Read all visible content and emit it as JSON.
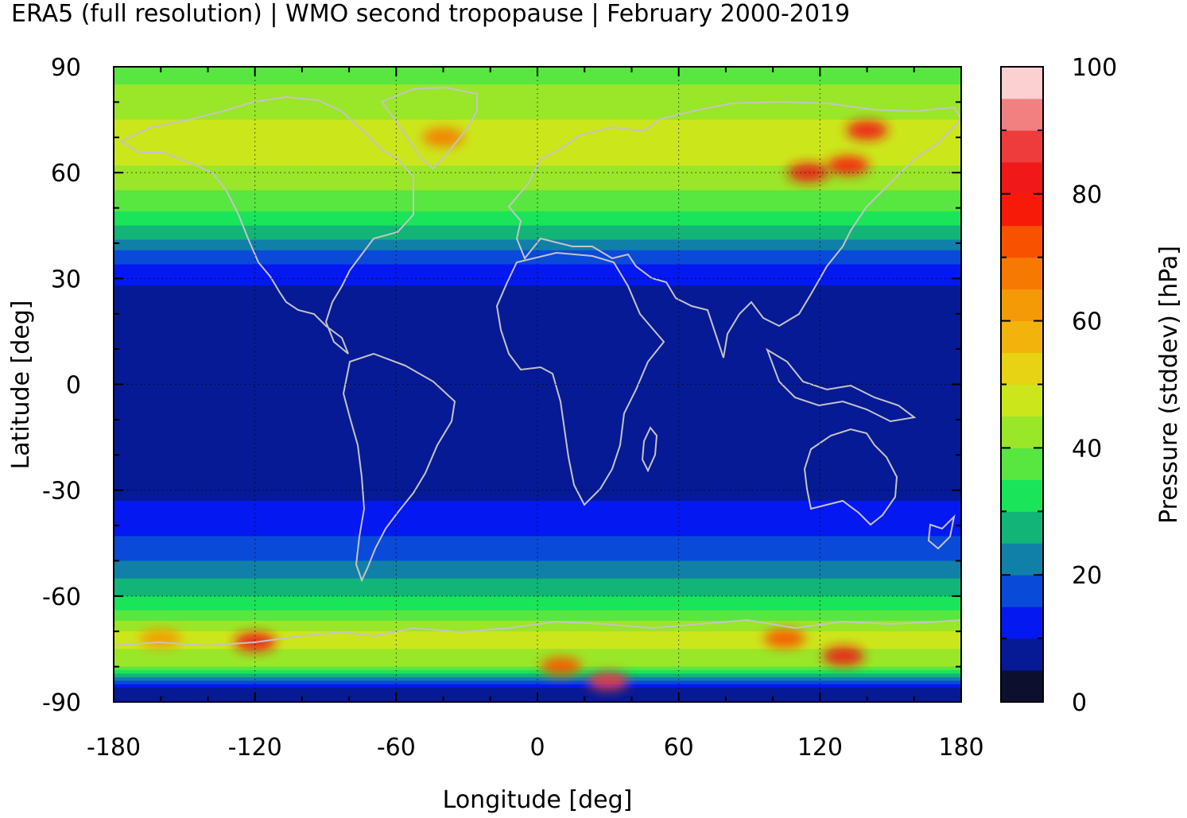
{
  "chart_data": {
    "type": "heatmap",
    "title": "ERA5 (full resolution) | WMO second tropopause | February 2000-2019",
    "xlabel": "Longitude [deg]",
    "ylabel": "Latitude [deg]",
    "xlim": [
      -180,
      180
    ],
    "ylim": [
      -90,
      90
    ],
    "x_ticks": [
      -180,
      -120,
      -60,
      0,
      60,
      120,
      180
    ],
    "y_ticks": [
      90,
      60,
      30,
      0,
      -30,
      -60,
      -90
    ],
    "grid": true,
    "colorbar": {
      "label": "Pressure (stddev) [hPa]",
      "range": [
        0,
        100
      ],
      "ticks": [
        100,
        80,
        60,
        40,
        20,
        0
      ],
      "levels": 20,
      "colors": [
        "#0c0f2e",
        "#061a96",
        "#0418f2",
        "#0a4ad8",
        "#1080a8",
        "#12b478",
        "#1ae45a",
        "#58e640",
        "#9ae628",
        "#cce61c",
        "#e8d214",
        "#f2b40c",
        "#f49a06",
        "#f67a02",
        "#f85200",
        "#f81a08",
        "#f01818",
        "#ee3c3c",
        "#f28080",
        "#fcd0d0"
      ]
    },
    "zonal_profile": [
      {
        "lat": 90,
        "value": 38
      },
      {
        "lat": 80,
        "value": 42
      },
      {
        "lat": 70,
        "value": 48
      },
      {
        "lat": 60,
        "value": 44
      },
      {
        "lat": 50,
        "value": 36
      },
      {
        "lat": 42,
        "value": 26
      },
      {
        "lat": 35,
        "value": 16
      },
      {
        "lat": 28,
        "value": 10
      },
      {
        "lat": 20,
        "value": 6
      },
      {
        "lat": 10,
        "value": 5
      },
      {
        "lat": 0,
        "value": 7
      },
      {
        "lat": -10,
        "value": 6
      },
      {
        "lat": -20,
        "value": 5
      },
      {
        "lat": -28,
        "value": 8
      },
      {
        "lat": -35,
        "value": 11
      },
      {
        "lat": -42,
        "value": 14
      },
      {
        "lat": -50,
        "value": 20
      },
      {
        "lat": -58,
        "value": 28
      },
      {
        "lat": -65,
        "value": 36
      },
      {
        "lat": -72,
        "value": 48
      },
      {
        "lat": -80,
        "value": 40
      },
      {
        "lat": -86,
        "value": 10
      },
      {
        "lat": -90,
        "value": 8
      }
    ],
    "hotspots": [
      {
        "lon": 115,
        "lat": 60,
        "value": 82
      },
      {
        "lon": 140,
        "lat": 72,
        "value": 80
      },
      {
        "lon": 132,
        "lat": 62,
        "value": 75
      },
      {
        "lon": -40,
        "lat": 70,
        "value": 65
      },
      {
        "lon": 30,
        "lat": -84,
        "value": 85
      },
      {
        "lon": -120,
        "lat": -73,
        "value": 84
      },
      {
        "lon": 130,
        "lat": -77,
        "value": 80
      },
      {
        "lon": 105,
        "lat": -72,
        "value": 72
      },
      {
        "lon": 10,
        "lat": -80,
        "value": 70
      },
      {
        "lon": -160,
        "lat": -72,
        "value": 60
      }
    ]
  }
}
